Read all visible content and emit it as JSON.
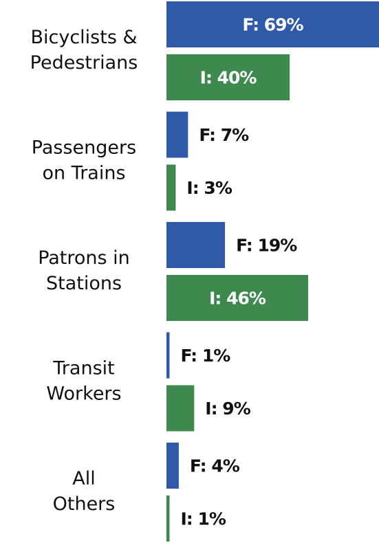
{
  "chart_data": {
    "type": "barh",
    "categories": [
      [
        "Bicyclists &",
        "Pedestrians"
      ],
      [
        "Passengers",
        "on Trains"
      ],
      [
        "Patrons in",
        "Stations"
      ],
      [
        "Transit",
        "Workers"
      ],
      [
        "All",
        "Others"
      ]
    ],
    "series": [
      {
        "color": "#2e5aa8",
        "values": [
          69,
          7,
          19,
          1,
          4
        ],
        "value_labels": [
          "F: 69%",
          "F: 7%",
          "F: 19%",
          "F: 1%",
          "F: 4%"
        ]
      },
      {
        "color": "#3e8a4e",
        "values": [
          40,
          3,
          46,
          9,
          1
        ],
        "value_labels": [
          "I: 40%",
          "I: 3%",
          "I: 46%",
          "I: 9%",
          "I: 1%"
        ]
      }
    ],
    "xlim": [
      0,
      69
    ]
  }
}
